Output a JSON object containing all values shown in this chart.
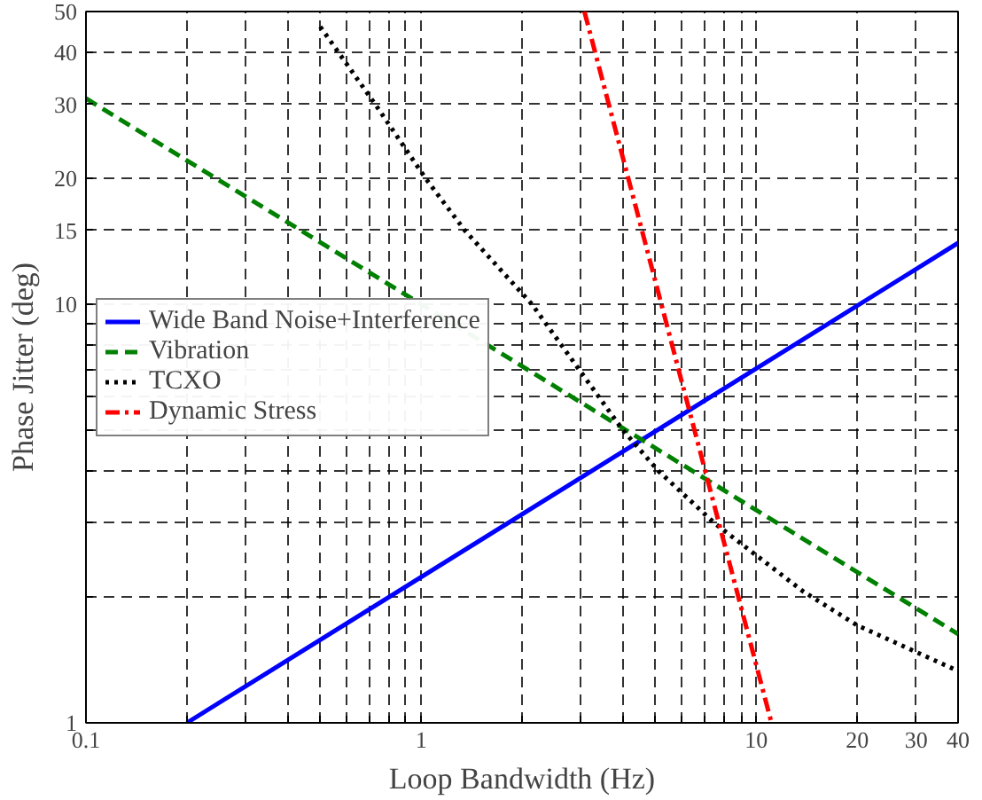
{
  "chart_data": {
    "type": "line",
    "xlabel": "Loop Bandwidth (Hz)",
    "ylabel": "Phase Jitter (deg)",
    "log": "xy",
    "grid": true,
    "legend": "left",
    "xlim": [
      0.1,
      40
    ],
    "ylim": [
      1,
      50
    ],
    "xticks": [
      0.1,
      {
        "value": 0.2,
        "label": null
      },
      {
        "value": 0.3,
        "label": null
      },
      {
        "value": 0.4,
        "label": null
      },
      {
        "value": 0.5,
        "label": null
      },
      {
        "value": 0.6,
        "label": null
      },
      {
        "value": 0.7,
        "label": null
      },
      {
        "value": 0.8,
        "label": null
      },
      {
        "value": 0.9,
        "label": null
      },
      1,
      {
        "value": 2,
        "label": null
      },
      {
        "value": 3,
        "label": null
      },
      {
        "value": 4,
        "label": null
      },
      {
        "value": 5,
        "label": null
      },
      {
        "value": 6,
        "label": null
      },
      {
        "value": 7,
        "label": null
      },
      {
        "value": 8,
        "label": null
      },
      {
        "value": 9,
        "label": null
      },
      10,
      20,
      30,
      40
    ],
    "yticks": [
      1,
      {
        "value": 2,
        "label": null
      },
      {
        "value": 3,
        "label": null
      },
      {
        "value": 4,
        "label": null
      },
      {
        "value": 5,
        "label": null
      },
      {
        "value": 6,
        "label": null
      },
      {
        "value": 7,
        "label": null
      },
      {
        "value": 8,
        "label": null
      },
      {
        "value": 9,
        "label": null
      },
      10,
      15,
      20,
      30,
      40,
      50
    ],
    "series": [
      {
        "name": "Wide Band Noise+Interference",
        "color": "#0000ff",
        "line_style": "solid",
        "x": [
          0.2,
          40
        ],
        "values": [
          1,
          14
        ]
      },
      {
        "name": "Vibration",
        "color": "#008000",
        "line_style": "dashed",
        "x": [
          0.1,
          40
        ],
        "values": [
          31,
          1.63
        ]
      },
      {
        "name": "TCXO",
        "color": "#000000",
        "line_style": "dotted",
        "x": [
          0.5,
          0.73,
          1.03,
          1.35,
          2.14,
          4.0,
          5.1,
          7.5,
          13.8,
          20,
          40
        ],
        "values": [
          46,
          30,
          20,
          15,
          10,
          5.0,
          4.0,
          3.0,
          2.06,
          1.71,
          1.33
        ]
      },
      {
        "name": "Dynamic Stress",
        "color": "#ff0000",
        "line_style": "dashdot",
        "x": [
          3.07,
          11.1
        ],
        "values": [
          50,
          1
        ]
      }
    ]
  }
}
